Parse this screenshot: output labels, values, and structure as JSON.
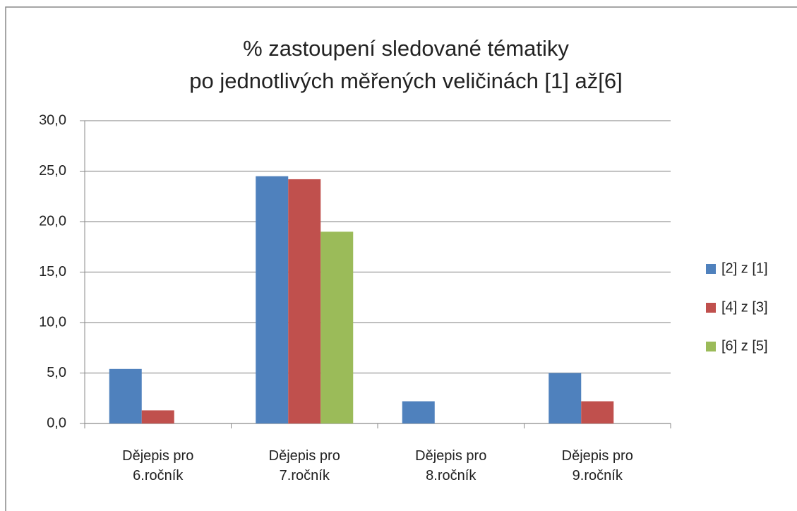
{
  "chart_data": {
    "type": "bar",
    "title": "% zastoupení sledované tématiky\npo jednotlivých měřených veličinách [1] až[6]",
    "categories": [
      "Dějepis pro\n6.ročník",
      "Dějepis pro\n7.ročník",
      "Dějepis pro\n8.ročník",
      "Dějepis pro\n9.ročník"
    ],
    "series": [
      {
        "name": "[2] z [1]",
        "color": "#4f81bd",
        "values": [
          5.4,
          24.5,
          2.2,
          5.0
        ]
      },
      {
        "name": "[4] z [3]",
        "color": "#c0504d",
        "values": [
          1.3,
          24.2,
          0,
          2.2
        ]
      },
      {
        "name": "[6] z [5]",
        "color": "#9bbb59",
        "values": [
          0,
          19.0,
          0,
          0
        ]
      }
    ],
    "ylim": [
      0,
      30
    ],
    "yticks": [
      {
        "value": 0,
        "label": "0,0"
      },
      {
        "value": 5,
        "label": "5,0"
      },
      {
        "value": 10,
        "label": "10,0"
      },
      {
        "value": 15,
        "label": "15,0"
      },
      {
        "value": 20,
        "label": "20,0"
      },
      {
        "value": 25,
        "label": "25,0"
      },
      {
        "value": 30,
        "label": "30,0"
      }
    ],
    "grid": true,
    "legend": "right"
  }
}
